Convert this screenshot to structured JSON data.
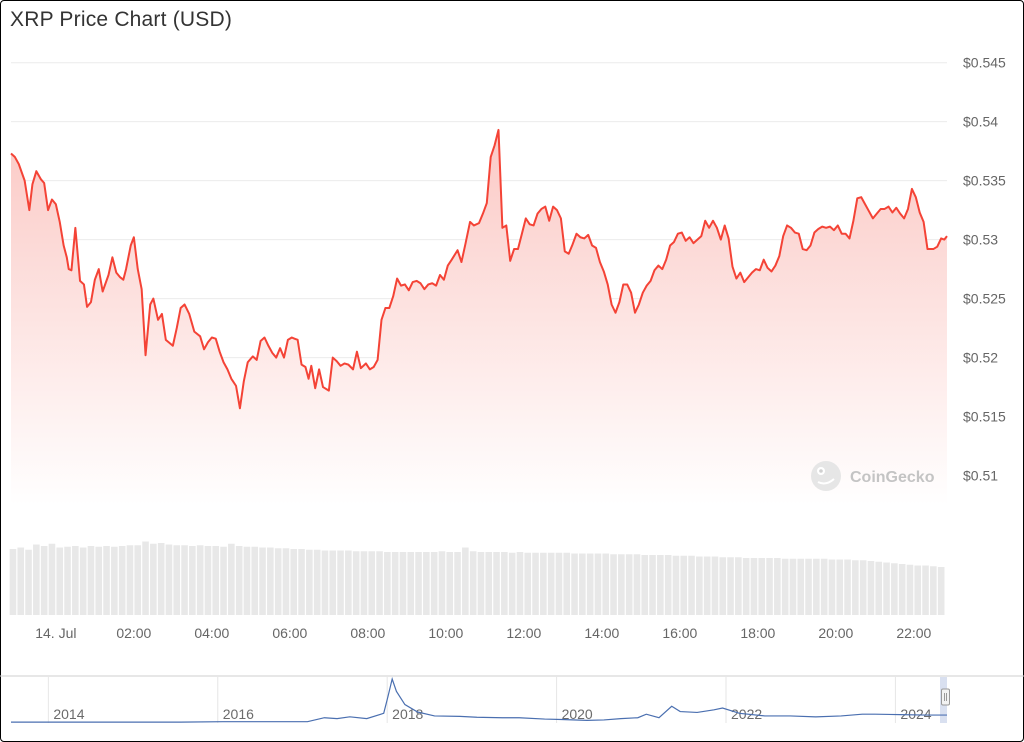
{
  "title": "XRP Price Chart (USD)",
  "watermark": "CoinGecko",
  "colors": {
    "price_line": "#f44336",
    "area_top": "#fbc9c5",
    "volume": "#e8e8e8",
    "navigator_line": "#4a6fb0",
    "grid": "#ececec"
  },
  "chart_data": {
    "type": "area",
    "title": "XRP Price Chart (USD)",
    "xlabel": "",
    "ylabel": "",
    "ylim": [
      0.5075,
      0.5465
    ],
    "y_ticks": [
      "$0.545",
      "$0.54",
      "$0.535",
      "$0.53",
      "$0.525",
      "$0.52",
      "$0.515",
      "$0.51"
    ],
    "y_tick_values": [
      0.545,
      0.54,
      0.535,
      0.53,
      0.525,
      0.52,
      0.515,
      0.51
    ],
    "x_ticks": [
      "14. Jul",
      "02:00",
      "04:00",
      "06:00",
      "08:00",
      "10:00",
      "12:00",
      "14:00",
      "16:00",
      "18:00",
      "20:00",
      "22:00"
    ],
    "x_tick_hours": [
      0,
      2,
      4,
      6,
      8,
      10,
      12,
      14,
      16,
      18,
      20,
      22
    ],
    "x_range_hours": [
      -1.15,
      22.85
    ],
    "grid": true,
    "series": [
      {
        "unit": "USD",
        "x_hours": [
          -1.15,
          -1.05,
          -0.95,
          -0.8,
          -0.68,
          -0.6,
          -0.5,
          -0.38,
          -0.3,
          -0.2,
          -0.1,
          0.0,
          0.1,
          0.2,
          0.28,
          0.33,
          0.4,
          0.5,
          0.62,
          0.72,
          0.8,
          0.9,
          1.0,
          1.1,
          1.2,
          1.35,
          1.45,
          1.55,
          1.65,
          1.73,
          1.8,
          1.92,
          2.0,
          2.1,
          2.2,
          2.3,
          2.42,
          2.5,
          2.62,
          2.72,
          2.82,
          3.0,
          3.1,
          3.2,
          3.3,
          3.42,
          3.55,
          3.7,
          3.8,
          3.9,
          4.0,
          4.1,
          4.2,
          4.3,
          4.4,
          4.5,
          4.62,
          4.72,
          4.82,
          4.92,
          5.05,
          5.15,
          5.25,
          5.35,
          5.45,
          5.55,
          5.65,
          5.75,
          5.85,
          5.95,
          6.05,
          6.12,
          6.2,
          6.3,
          6.4,
          6.48,
          6.55,
          6.65,
          6.75,
          6.85,
          7.0,
          7.1,
          7.2,
          7.3,
          7.4,
          7.5,
          7.62,
          7.72,
          7.82,
          7.95,
          8.05,
          8.15,
          8.25,
          8.35,
          8.45,
          8.55,
          8.65,
          8.75,
          8.85,
          8.95,
          9.05,
          9.15,
          9.25,
          9.35,
          9.45,
          9.55,
          9.65,
          9.75,
          9.85,
          9.95,
          10.05,
          10.15,
          10.3,
          10.4,
          10.5,
          10.62,
          10.72,
          10.85,
          10.95,
          11.05,
          11.15,
          11.25,
          11.35,
          11.45,
          11.55,
          11.65,
          11.75,
          11.85,
          11.95,
          12.05,
          12.15,
          12.25,
          12.35,
          12.45,
          12.55,
          12.65,
          12.75,
          12.85,
          12.95,
          13.05,
          13.15,
          13.25,
          13.35,
          13.45,
          13.55,
          13.65,
          13.75,
          13.85,
          13.95,
          14.05,
          14.15,
          14.25,
          14.35,
          14.45,
          14.55,
          14.65,
          14.75,
          14.85,
          14.95,
          15.05,
          15.15,
          15.25,
          15.35,
          15.45,
          15.55,
          15.65,
          15.75,
          15.85,
          15.95,
          16.05,
          16.15,
          16.25,
          16.35,
          16.45,
          16.55,
          16.65,
          16.75,
          16.85,
          16.95,
          17.05,
          17.15,
          17.25,
          17.35,
          17.45,
          17.55,
          17.65,
          17.75,
          17.85,
          17.95,
          18.05,
          18.15,
          18.25,
          18.35,
          18.45,
          18.55,
          18.65,
          18.75,
          18.85,
          18.95,
          19.05,
          19.15,
          19.25,
          19.35,
          19.45,
          19.55,
          19.65,
          19.75,
          19.85,
          19.95,
          20.05,
          20.15,
          20.25,
          20.35,
          20.45,
          20.55,
          20.65,
          20.75,
          20.85,
          20.95,
          21.05,
          21.15,
          21.25,
          21.35,
          21.45,
          21.55,
          21.65,
          21.75,
          21.85,
          21.95,
          22.05,
          22.15,
          22.25,
          22.35,
          22.5,
          22.6,
          22.7,
          22.78,
          22.85
        ],
        "y": [
          0.5373,
          0.537,
          0.5364,
          0.535,
          0.5325,
          0.5347,
          0.5358,
          0.5351,
          0.5348,
          0.5325,
          0.5334,
          0.533,
          0.5315,
          0.5295,
          0.5285,
          0.5275,
          0.5274,
          0.531,
          0.5265,
          0.5262,
          0.5243,
          0.5247,
          0.5266,
          0.5275,
          0.5256,
          0.527,
          0.5285,
          0.5272,
          0.5268,
          0.5266,
          0.5275,
          0.5295,
          0.5302,
          0.5275,
          0.5258,
          0.5202,
          0.5245,
          0.525,
          0.5232,
          0.5237,
          0.5215,
          0.521,
          0.5225,
          0.5242,
          0.5245,
          0.5237,
          0.5222,
          0.5218,
          0.5207,
          0.5213,
          0.5217,
          0.5216,
          0.5205,
          0.5196,
          0.519,
          0.5182,
          0.5176,
          0.5157,
          0.518,
          0.5196,
          0.5201,
          0.5198,
          0.5214,
          0.5217,
          0.521,
          0.5204,
          0.52,
          0.5208,
          0.52,
          0.5215,
          0.5217,
          0.5216,
          0.5215,
          0.5194,
          0.5192,
          0.5182,
          0.5193,
          0.5174,
          0.519,
          0.5175,
          0.5172,
          0.52,
          0.5197,
          0.5193,
          0.5195,
          0.5194,
          0.519,
          0.5205,
          0.5191,
          0.5195,
          0.519,
          0.5192,
          0.5198,
          0.5232,
          0.5242,
          0.5242,
          0.5252,
          0.5267,
          0.5261,
          0.5262,
          0.5257,
          0.5264,
          0.5265,
          0.5263,
          0.5258,
          0.5262,
          0.5263,
          0.5261,
          0.527,
          0.5266,
          0.5278,
          0.5283,
          0.5291,
          0.5281,
          0.5296,
          0.5315,
          0.5312,
          0.5314,
          0.5322,
          0.5331,
          0.537,
          0.538,
          0.5393,
          0.531,
          0.5312,
          0.5282,
          0.5292,
          0.5292,
          0.5305,
          0.5318,
          0.5313,
          0.5312,
          0.5322,
          0.5326,
          0.5328,
          0.5316,
          0.5328,
          0.5325,
          0.5318,
          0.529,
          0.5288,
          0.5296,
          0.5305,
          0.5302,
          0.5301,
          0.5304,
          0.5295,
          0.5293,
          0.5281,
          0.5273,
          0.5262,
          0.5245,
          0.5238,
          0.5247,
          0.5262,
          0.5262,
          0.5255,
          0.5238,
          0.5245,
          0.5255,
          0.5261,
          0.5265,
          0.5274,
          0.5278,
          0.5275,
          0.5283,
          0.5295,
          0.5298,
          0.5305,
          0.5306,
          0.5299,
          0.5302,
          0.5297,
          0.53,
          0.5303,
          0.5316,
          0.531,
          0.5316,
          0.531,
          0.53,
          0.5312,
          0.5301,
          0.5277,
          0.5267,
          0.5272,
          0.5264,
          0.5268,
          0.5272,
          0.5275,
          0.5274,
          0.5283,
          0.5276,
          0.5273,
          0.5278,
          0.5286,
          0.5303,
          0.5312,
          0.531,
          0.5306,
          0.5305,
          0.5292,
          0.5291,
          0.5295,
          0.5306,
          0.5309,
          0.5311,
          0.531,
          0.5311,
          0.5308,
          0.5312,
          0.5305,
          0.5305,
          0.5301,
          0.5316,
          0.5335,
          0.5336,
          0.533,
          0.5324,
          0.5318,
          0.5322,
          0.5326,
          0.5326,
          0.5328,
          0.5323,
          0.5327,
          0.5322,
          0.5318,
          0.5326,
          0.5343,
          0.5336,
          0.5323,
          0.5315,
          0.5292,
          0.5292,
          0.5294,
          0.5301,
          0.53,
          0.5303
        ]
      }
    ],
    "volume_ylim": [
      0,
      1
    ],
    "volume": {
      "x_hours": [
        -1.1,
        -0.9,
        -0.7,
        -0.5,
        -0.3,
        -0.1,
        0.1,
        0.3,
        0.5,
        0.7,
        0.9,
        1.1,
        1.3,
        1.5,
        1.7,
        1.9,
        2.1,
        2.3,
        2.5,
        2.7,
        2.9,
        3.1,
        3.3,
        3.5,
        3.7,
        3.9,
        4.1,
        4.3,
        4.5,
        4.7,
        4.9,
        5.1,
        5.3,
        5.5,
        5.7,
        5.9,
        6.1,
        6.3,
        6.5,
        6.7,
        6.9,
        7.1,
        7.3,
        7.5,
        7.7,
        7.9,
        8.1,
        8.3,
        8.5,
        8.7,
        8.9,
        9.1,
        9.3,
        9.5,
        9.7,
        9.9,
        10.1,
        10.3,
        10.5,
        10.7,
        10.9,
        11.1,
        11.3,
        11.5,
        11.7,
        11.9,
        12.1,
        12.3,
        12.5,
        12.7,
        12.9,
        13.1,
        13.3,
        13.5,
        13.7,
        13.9,
        14.1,
        14.3,
        14.5,
        14.7,
        14.9,
        15.1,
        15.3,
        15.5,
        15.7,
        15.9,
        16.1,
        16.3,
        16.5,
        16.7,
        16.9,
        17.1,
        17.3,
        17.5,
        17.7,
        17.9,
        18.1,
        18.3,
        18.5,
        18.7,
        18.9,
        19.1,
        19.3,
        19.5,
        19.7,
        19.9,
        20.1,
        20.3,
        20.5,
        20.7,
        20.9,
        21.1,
        21.3,
        21.5,
        21.7,
        21.9,
        22.1,
        22.3,
        22.5,
        22.7
      ],
      "values": [
        0.88,
        0.9,
        0.87,
        0.94,
        0.92,
        0.95,
        0.9,
        0.91,
        0.92,
        0.9,
        0.92,
        0.91,
        0.92,
        0.91,
        0.92,
        0.93,
        0.93,
        0.98,
        0.95,
        0.96,
        0.94,
        0.93,
        0.93,
        0.92,
        0.93,
        0.92,
        0.92,
        0.91,
        0.95,
        0.92,
        0.91,
        0.91,
        0.9,
        0.9,
        0.89,
        0.89,
        0.88,
        0.88,
        0.87,
        0.87,
        0.86,
        0.86,
        0.86,
        0.86,
        0.85,
        0.85,
        0.85,
        0.85,
        0.84,
        0.84,
        0.84,
        0.84,
        0.84,
        0.84,
        0.84,
        0.85,
        0.84,
        0.84,
        0.9,
        0.85,
        0.84,
        0.84,
        0.84,
        0.84,
        0.83,
        0.84,
        0.83,
        0.83,
        0.83,
        0.83,
        0.83,
        0.83,
        0.82,
        0.82,
        0.82,
        0.82,
        0.82,
        0.81,
        0.81,
        0.81,
        0.81,
        0.8,
        0.8,
        0.8,
        0.8,
        0.79,
        0.79,
        0.79,
        0.78,
        0.78,
        0.78,
        0.77,
        0.77,
        0.77,
        0.76,
        0.76,
        0.76,
        0.76,
        0.76,
        0.75,
        0.75,
        0.75,
        0.75,
        0.75,
        0.75,
        0.74,
        0.74,
        0.74,
        0.73,
        0.73,
        0.72,
        0.71,
        0.7,
        0.69,
        0.68,
        0.67,
        0.66,
        0.66,
        0.65,
        0.64
      ]
    },
    "navigator": {
      "x_ticks": [
        "2014",
        "2016",
        "2018",
        "2020",
        "2022",
        "2024"
      ],
      "x_tick_years": [
        2014,
        2016,
        2018,
        2020,
        2022,
        2024
      ],
      "x_range_years": [
        2013.5,
        2024.55
      ],
      "ylim": [
        0,
        1
      ],
      "x_years": [
        2013.5,
        2014.0,
        2014.5,
        2015.0,
        2015.5,
        2016.0,
        2016.5,
        2017.0,
        2017.2,
        2017.35,
        2017.5,
        2017.7,
        2017.9,
        2017.95,
        2018.0,
        2018.05,
        2018.15,
        2018.3,
        2018.5,
        2018.8,
        2019.0,
        2019.3,
        2019.5,
        2019.8,
        2020.0,
        2020.3,
        2020.5,
        2020.7,
        2020.9,
        2021.0,
        2021.15,
        2021.3,
        2021.4,
        2021.6,
        2021.8,
        2021.9,
        2022.1,
        2022.4,
        2022.7,
        2023.0,
        2023.3,
        2023.55,
        2023.7,
        2024.0,
        2024.3,
        2024.55
      ],
      "values": [
        0.02,
        0.02,
        0.02,
        0.02,
        0.02,
        0.03,
        0.03,
        0.03,
        0.12,
        0.1,
        0.14,
        0.1,
        0.22,
        0.6,
        1.0,
        0.72,
        0.42,
        0.25,
        0.16,
        0.15,
        0.13,
        0.12,
        0.12,
        0.09,
        0.08,
        0.06,
        0.07,
        0.1,
        0.12,
        0.2,
        0.12,
        0.38,
        0.26,
        0.24,
        0.3,
        0.34,
        0.22,
        0.16,
        0.16,
        0.14,
        0.16,
        0.2,
        0.2,
        0.19,
        0.18,
        0.18
      ]
    }
  }
}
